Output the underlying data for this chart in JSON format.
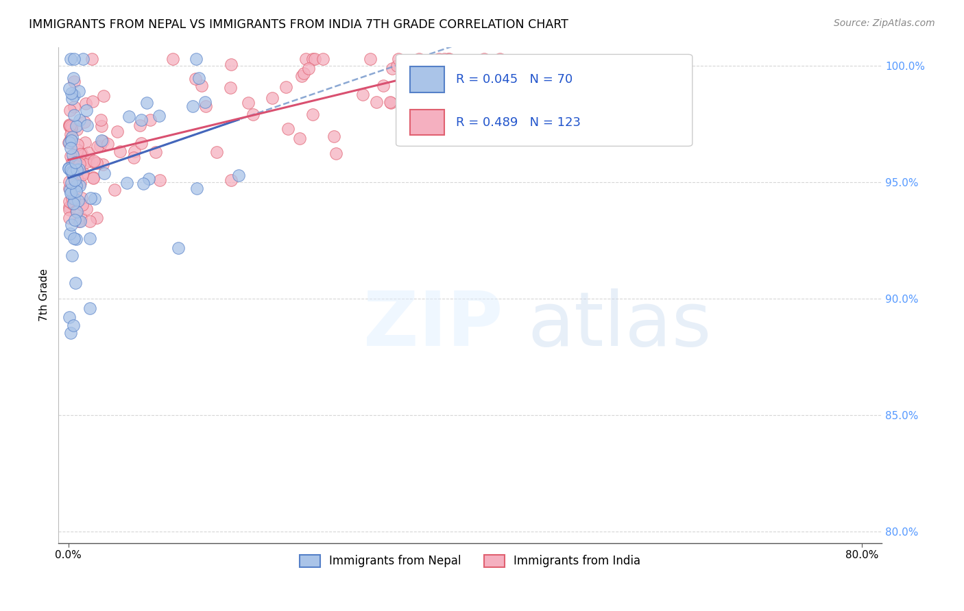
{
  "title": "IMMIGRANTS FROM NEPAL VS IMMIGRANTS FROM INDIA 7TH GRADE CORRELATION CHART",
  "source": "Source: ZipAtlas.com",
  "ylabel": "7th Grade",
  "nepal_R": 0.045,
  "nepal_N": 70,
  "india_R": 0.489,
  "india_N": 123,
  "nepal_color": "#aac4e8",
  "india_color": "#f5b0c0",
  "nepal_edge_color": "#5580c8",
  "india_edge_color": "#e06070",
  "nepal_line_color": "#4466bb",
  "india_line_color": "#d95070",
  "dash_line_color": "#7799cc",
  "background_color": "#ffffff",
  "grid_color": "#cccccc",
  "right_axis_color": "#5599ff",
  "legend_label_nepal": "Immigrants from Nepal",
  "legend_label_india": "Immigrants from India",
  "x_min": 0.0,
  "x_max": 0.8,
  "y_min": 0.795,
  "y_max": 1.008,
  "y_ticks": [
    0.8,
    0.85,
    0.9,
    0.95,
    1.0
  ],
  "y_tick_labels": [
    "80.0%",
    "85.0%",
    "90.0%",
    "95.0%",
    "100.0%"
  ],
  "x_ticks": [
    0.0,
    0.8
  ],
  "x_tick_labels": [
    "0.0%",
    "80.0%"
  ]
}
